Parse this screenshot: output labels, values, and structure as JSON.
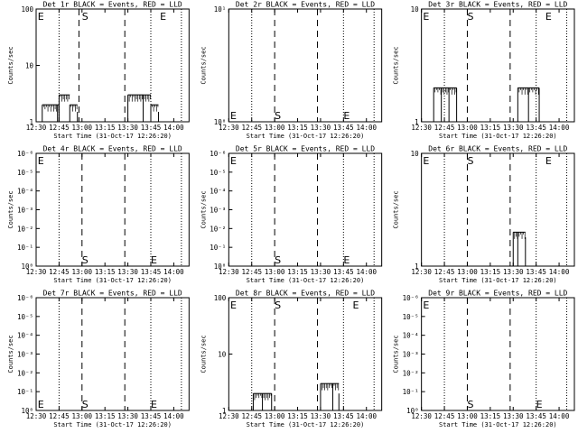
{
  "figure": {
    "xtick_labels": [
      "12:30",
      "12:45",
      "13:00",
      "13:15",
      "13:30",
      "13:45",
      "14:00"
    ],
    "xlabel": "Start Time (31-Oct-17 12:26:20)",
    "ylabel": "Counts/sec",
    "colors": {
      "events": "#000000",
      "lld": "#ff0000",
      "axes": "#000000",
      "background": "#ffffff"
    }
  },
  "chart_data": [
    {
      "type": "line",
      "title": "Det 1r BLACK = Events, RED = LLD",
      "ylabel": "Counts/sec",
      "xlabel": "Start Time (31-Oct-17 12:26:20)",
      "xlim": [
        "12:30",
        "14:10"
      ],
      "ylim": [
        1,
        100
      ],
      "yscale": "log",
      "ytick_labels": [
        "1",
        "10",
        "100"
      ],
      "vlines_dotted": [
        "12:45",
        "13:45",
        "14:05"
      ],
      "vlines_dashed": [
        "12:58",
        "13:28"
      ],
      "markers": [
        {
          "text": "E",
          "x": "12:31",
          "y": "top"
        },
        {
          "text": "S",
          "x": "13:00",
          "y": "top"
        },
        {
          "text": "E",
          "x": "13:51",
          "y": "top"
        }
      ],
      "series": [
        {
          "values": [
            {
              "x": "12:34",
              "y": 2
            },
            {
              "x": "12:44",
              "y": 2
            },
            {
              "x": "12:45",
              "y": 3
            },
            {
              "x": "12:52",
              "y": 2
            },
            {
              "x": "12:57",
              "y": 1.5
            },
            {
              "x": "13:30",
              "y": 3
            },
            {
              "x": "13:40",
              "y": 3
            },
            {
              "x": "13:45",
              "y": 2
            },
            {
              "x": "13:50",
              "y": 1.5
            }
          ]
        }
      ]
    },
    {
      "type": "line",
      "title": "Det 2r BLACK = Events, RED = LLD",
      "ylabel": "Counts/sec",
      "xlabel": "Start Time (31-Oct-17 12:26:20)",
      "xlim": [
        "12:30",
        "14:10"
      ],
      "ylim": [
        1,
        10
      ],
      "yscale": "log",
      "ytick_labels": [
        "10⁰",
        "10¹"
      ],
      "vlines_dotted": [
        "12:45",
        "13:45",
        "14:05"
      ],
      "vlines_dashed": [
        "13:00",
        "13:28"
      ],
      "markers": [
        {
          "text": "E",
          "x": "12:31",
          "y": "bottom"
        },
        {
          "text": "S",
          "x": "13:00",
          "y": "bottom"
        },
        {
          "text": "E",
          "x": "13:45",
          "y": "bottom"
        }
      ],
      "series": []
    },
    {
      "type": "line",
      "title": "Det 3r BLACK = Events, RED = LLD",
      "ylabel": "Counts/sec",
      "xlabel": "Start Time (31-Oct-17 12:26:20)",
      "xlim": [
        "12:30",
        "14:10"
      ],
      "ylim": [
        1,
        10
      ],
      "yscale": "log",
      "ytick_labels": [
        "1",
        "10"
      ],
      "vlines_dotted": [
        "12:45",
        "13:45",
        "14:05"
      ],
      "vlines_dashed": [
        "13:00",
        "13:28"
      ],
      "markers": [
        {
          "text": "E",
          "x": "12:31",
          "y": "top"
        },
        {
          "text": "S",
          "x": "13:00",
          "y": "top"
        },
        {
          "text": "E",
          "x": "13:51",
          "y": "top"
        }
      ],
      "series": [
        {
          "values": [
            {
              "x": "12:38",
              "y": 2
            },
            {
              "x": "12:43",
              "y": 2
            },
            {
              "x": "12:48",
              "y": 2
            },
            {
              "x": "12:53",
              "y": 2
            },
            {
              "x": "13:33",
              "y": 2
            },
            {
              "x": "13:40",
              "y": 2
            },
            {
              "x": "13:47",
              "y": 2
            }
          ]
        }
      ]
    },
    {
      "type": "line",
      "title": "Det 4r BLACK = Events, RED = LLD",
      "ylabel": "Counts/sec",
      "xlabel": "Start Time (31-Oct-17 12:26:20)",
      "xlim": [
        "12:30",
        "14:10"
      ],
      "ylim": [
        1,
        10
      ],
      "yscale": "log",
      "ytick_labels": [
        "10⁰",
        "10⁻¹",
        "10⁻²",
        "10⁻³",
        "10⁻⁴",
        "10⁻⁵",
        "10⁻⁶"
      ],
      "vlines_dotted": [
        "12:45",
        "13:45",
        "14:05"
      ],
      "vlines_dashed": [
        "13:00",
        "13:28"
      ],
      "markers": [
        {
          "text": "E",
          "x": "12:31",
          "y": "top"
        },
        {
          "text": "S",
          "x": "13:00",
          "y": "bottom"
        },
        {
          "text": "E",
          "x": "13:45",
          "y": "bottom"
        }
      ],
      "series": []
    },
    {
      "type": "line",
      "title": "Det 5r BLACK = Events, RED = LLD",
      "ylabel": "Counts/sec",
      "xlabel": "Start Time (31-Oct-17 12:26:20)",
      "xlim": [
        "12:30",
        "14:10"
      ],
      "ylim": [
        1,
        10
      ],
      "yscale": "log",
      "ytick_labels": [
        "10⁰",
        "10⁻¹",
        "10⁻²",
        "10⁻³",
        "10⁻⁴",
        "10⁻⁵",
        "10⁻⁶"
      ],
      "vlines_dotted": [
        "12:45",
        "13:45",
        "14:05"
      ],
      "vlines_dashed": [
        "13:00",
        "13:28"
      ],
      "markers": [
        {
          "text": "E",
          "x": "12:31",
          "y": "top"
        },
        {
          "text": "S",
          "x": "13:00",
          "y": "bottom"
        },
        {
          "text": "E",
          "x": "13:45",
          "y": "bottom"
        }
      ],
      "series": []
    },
    {
      "type": "line",
      "title": "Det 6r BLACK = Events, RED = LLD",
      "ylabel": "Counts/sec",
      "xlabel": "Start Time (31-Oct-17 12:26:20)",
      "xlim": [
        "12:30",
        "14:10"
      ],
      "ylim": [
        1,
        10
      ],
      "yscale": "log",
      "ytick_labels": [
        "1",
        "10"
      ],
      "vlines_dotted": [
        "12:45",
        "13:45",
        "14:05"
      ],
      "vlines_dashed": [
        "13:00",
        "13:28"
      ],
      "markers": [
        {
          "text": "E",
          "x": "12:31",
          "y": "top"
        },
        {
          "text": "S",
          "x": "13:00",
          "y": "top"
        },
        {
          "text": "E",
          "x": "13:51",
          "y": "top"
        }
      ],
      "series": [
        {
          "values": [
            {
              "x": "13:30",
              "y": 2
            },
            {
              "x": "13:33",
              "y": 2
            },
            {
              "x": "13:38",
              "y": 1.8
            }
          ]
        }
      ]
    },
    {
      "type": "line",
      "title": "Det 7r BLACK = Events, RED = LLD",
      "ylabel": "Counts/sec",
      "xlabel": "Start Time (31-Oct-17 12:26:20)",
      "xlim": [
        "12:30",
        "14:10"
      ],
      "ylim": [
        1,
        10
      ],
      "yscale": "log",
      "ytick_labels": [
        "10⁰",
        "10⁻¹",
        "10⁻²",
        "10⁻³",
        "10⁻⁴",
        "10⁻⁵",
        "10⁻⁶"
      ],
      "vlines_dotted": [
        "12:45",
        "13:45",
        "14:05"
      ],
      "vlines_dashed": [
        "13:00",
        "13:28"
      ],
      "markers": [
        {
          "text": "E",
          "x": "12:31",
          "y": "bottom"
        },
        {
          "text": "S",
          "x": "13:00",
          "y": "bottom"
        },
        {
          "text": "E",
          "x": "13:45",
          "y": "bottom"
        }
      ],
      "series": []
    },
    {
      "type": "line",
      "title": "Det 8r BLACK = Events, RED = LLD",
      "ylabel": "Counts/sec",
      "xlabel": "Start Time (31-Oct-17 12:26:20)",
      "xlim": [
        "12:30",
        "14:10"
      ],
      "ylim": [
        1,
        100
      ],
      "yscale": "log",
      "ytick_labels": [
        "1",
        "10",
        "100"
      ],
      "vlines_dotted": [
        "12:45",
        "13:45",
        "14:05"
      ],
      "vlines_dashed": [
        "13:00",
        "13:28"
      ],
      "markers": [
        {
          "text": "E",
          "x": "12:31",
          "y": "top"
        },
        {
          "text": "S",
          "x": "13:00",
          "y": "top"
        },
        {
          "text": "E",
          "x": "13:51",
          "y": "top"
        }
      ],
      "series": [
        {
          "values": [
            {
              "x": "12:46",
              "y": 2
            },
            {
              "x": "12:52",
              "y": 2
            },
            {
              "x": "12:58",
              "y": 2
            },
            {
              "x": "13:30",
              "y": 3
            },
            {
              "x": "13:38",
              "y": 3
            },
            {
              "x": "13:42",
              "y": 2
            }
          ]
        }
      ]
    },
    {
      "type": "line",
      "title": "Det 9r BLACK = Events, RED = LLD",
      "ylabel": "Counts/sec",
      "xlabel": "Start Time (31-Oct-17 12:26:20)",
      "xlim": [
        "12:30",
        "14:10"
      ],
      "ylim": [
        1,
        10
      ],
      "yscale": "log",
      "ytick_labels": [
        "10⁰",
        "10⁻¹",
        "10⁻²",
        "10⁻³",
        "10⁻⁴",
        "10⁻⁵",
        "10⁻⁶"
      ],
      "vlines_dotted": [
        "12:45",
        "13:45",
        "14:05"
      ],
      "vlines_dashed": [
        "13:00",
        "13:28"
      ],
      "markers": [
        {
          "text": "E",
          "x": "12:31",
          "y": "top"
        },
        {
          "text": "S",
          "x": "13:00",
          "y": "bottom"
        },
        {
          "text": "E",
          "x": "13:45",
          "y": "bottom"
        }
      ],
      "series": []
    }
  ]
}
